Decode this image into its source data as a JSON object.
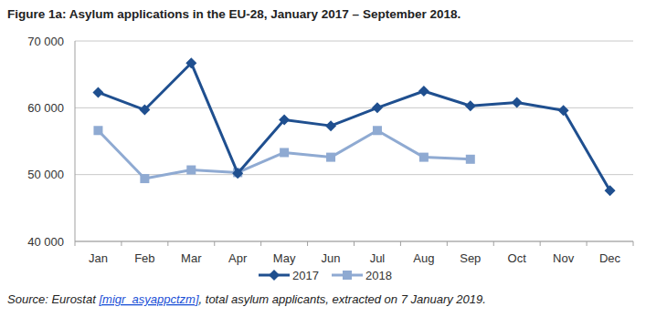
{
  "chart_data": {
    "type": "line",
    "title": "Figure 1a: Asylum applications in the EU-28, January 2017 – September 2018.",
    "source": [
      "Source: Eurostat ",
      "[migr_asyappctzm]",
      ", total asylum applicants, extracted on 7 January 2019."
    ],
    "categories": [
      "Jan",
      "Feb",
      "Mar",
      "Apr",
      "May",
      "Jun",
      "Jul",
      "Aug",
      "Sep",
      "Oct",
      "Nov",
      "Dec"
    ],
    "series": [
      {
        "name": "2017",
        "color": "#1f4f8f",
        "marker": "diamond",
        "values": [
          62300,
          59700,
          66700,
          50200,
          58200,
          57300,
          60000,
          62500,
          60300,
          60800,
          59600,
          47600
        ]
      },
      {
        "name": "2018",
        "color": "#8faad2",
        "marker": "square",
        "values": [
          56600,
          49400,
          50700,
          50300,
          53300,
          52600,
          56600,
          52600,
          52300,
          null,
          null,
          null
        ]
      }
    ],
    "ylim": [
      40000,
      70000
    ],
    "yticks": [
      {
        "value": 40000,
        "label": "40 000"
      },
      {
        "value": 50000,
        "label": "50 000"
      },
      {
        "value": 60000,
        "label": "60 000"
      },
      {
        "value": 70000,
        "label": "70 000"
      }
    ],
    "grid": true,
    "legend": "bottom"
  }
}
